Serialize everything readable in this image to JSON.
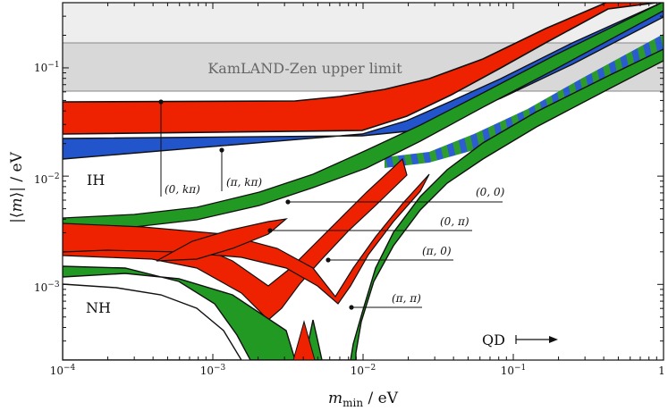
{
  "chart_data": {
    "type": "area",
    "xlabel": "m_min / eV",
    "ylabel": "|⟨m⟩| / eV",
    "xscale": "log",
    "yscale": "log",
    "xlim": [
      0.0001,
      1
    ],
    "ylim": [
      0.0002,
      0.4
    ],
    "x_tick_labels": [
      "10^-4",
      "10^-3",
      "10^-2",
      "10^-1",
      "1"
    ],
    "y_tick_labels": [
      "10^-3",
      "10^-2",
      "10^-1"
    ],
    "kamland": {
      "label": "KamLAND-Zen upper limit",
      "dark_band": [
        0.061,
        0.165
      ],
      "light_band": [
        0.165,
        0.4
      ]
    },
    "region_labels": {
      "ih": "IH",
      "nh": "NH",
      "qd": "QD"
    },
    "ordering_bands": [
      {
        "ordering": "IH",
        "phases": "(0,kπ)",
        "color": "#ee2200",
        "mmin": [
          0.0001,
          0.01,
          0.03,
          0.1,
          0.3,
          1
        ],
        "low": [
          0.0245,
          0.026,
          0.038,
          0.104,
          0.3,
          1.0
        ],
        "high": [
          0.049,
          0.0505,
          0.063,
          0.116,
          0.31,
          1.0
        ]
      },
      {
        "ordering": "IH",
        "phases": "(π,kπ)",
        "color": "#2255cc",
        "mmin": [
          0.0001,
          0.01,
          0.03,
          0.1,
          0.3,
          1
        ],
        "low": [
          0.0148,
          0.016,
          0.026,
          0.076,
          0.23,
          0.76
        ],
        "high": [
          0.0245,
          0.026,
          0.038,
          0.104,
          0.3,
          1.0
        ]
      },
      {
        "ordering": "NH",
        "phases": "(0,0)",
        "color": "#ee2200",
        "mmin": [
          0.0001,
          0.001,
          0.003,
          0.01,
          0.03,
          0.1,
          0.3,
          1
        ],
        "low": [
          0.0035,
          0.0037,
          0.0048,
          0.011,
          0.031,
          0.1,
          0.3,
          1.0
        ],
        "high": [
          0.0041,
          0.0044,
          0.006,
          0.013,
          0.035,
          0.105,
          0.31,
          1.0
        ]
      },
      {
        "ordering": "NH",
        "phases": "(0,π)",
        "color": "#ee2200",
        "mmin": [
          0.0001,
          0.001,
          0.002,
          0.003,
          0.005,
          0.01,
          0.03
        ],
        "low": [
          0.0022,
          0.0016,
          0.0008,
          0.001,
          0.0035,
          0.0095,
          0.029
        ],
        "high": [
          0.0029,
          0.0025,
          0.0028,
          0.0035,
          0.0055,
          0.0105,
          0.03
        ]
      },
      {
        "ordering": "NH",
        "phases": "(π,0)",
        "color": "#ee2200",
        "mmin": [
          0.0001,
          0.001,
          0.003,
          0.005,
          0.006,
          0.01,
          0.03
        ],
        "low": [
          0.0026,
          0.0025,
          0.0016,
          0.0011,
          0.0009,
          0.003,
          0.02
        ],
        "high": [
          0.0038,
          0.0037,
          0.003,
          0.0021,
          0.0012,
          0.005,
          0.022
        ]
      },
      {
        "ordering": "NH",
        "phases": "(π,π)",
        "color": "#229922",
        "mmin": [
          0.0001,
          0.001,
          0.002,
          0.003,
          0.004,
          0.006,
          0.008,
          0.01,
          0.03,
          0.1,
          0.3,
          1
        ],
        "low": [
          0.0011,
          0.0006,
          0.0002,
          0.0002,
          0.0002,
          0.0002,
          0.0002,
          0.0012,
          0.009,
          0.044,
          0.13,
          0.45
        ],
        "high": [
          0.0026,
          0.0024,
          0.0018,
          0.001,
          0.0005,
          0.0002,
          0.0006,
          0.0025,
          0.014,
          0.05,
          0.14,
          0.46
        ]
      }
    ],
    "annotations": [
      {
        "text": "(0, kπ)",
        "x": 0.00046,
        "y": 0.048
      },
      {
        "text": "(π, kπ)",
        "x": 0.00115,
        "y": 0.0175
      },
      {
        "text": "(0, 0)",
        "x": 0.0033,
        "y": 0.0059
      },
      {
        "text": "(0, π)",
        "x": 0.0024,
        "y": 0.0033
      },
      {
        "text": "(π, 0)",
        "x": 0.006,
        "y": 0.00178
      },
      {
        "text": "(π, π)",
        "x": 0.0085,
        "y": 0.00065
      }
    ]
  }
}
